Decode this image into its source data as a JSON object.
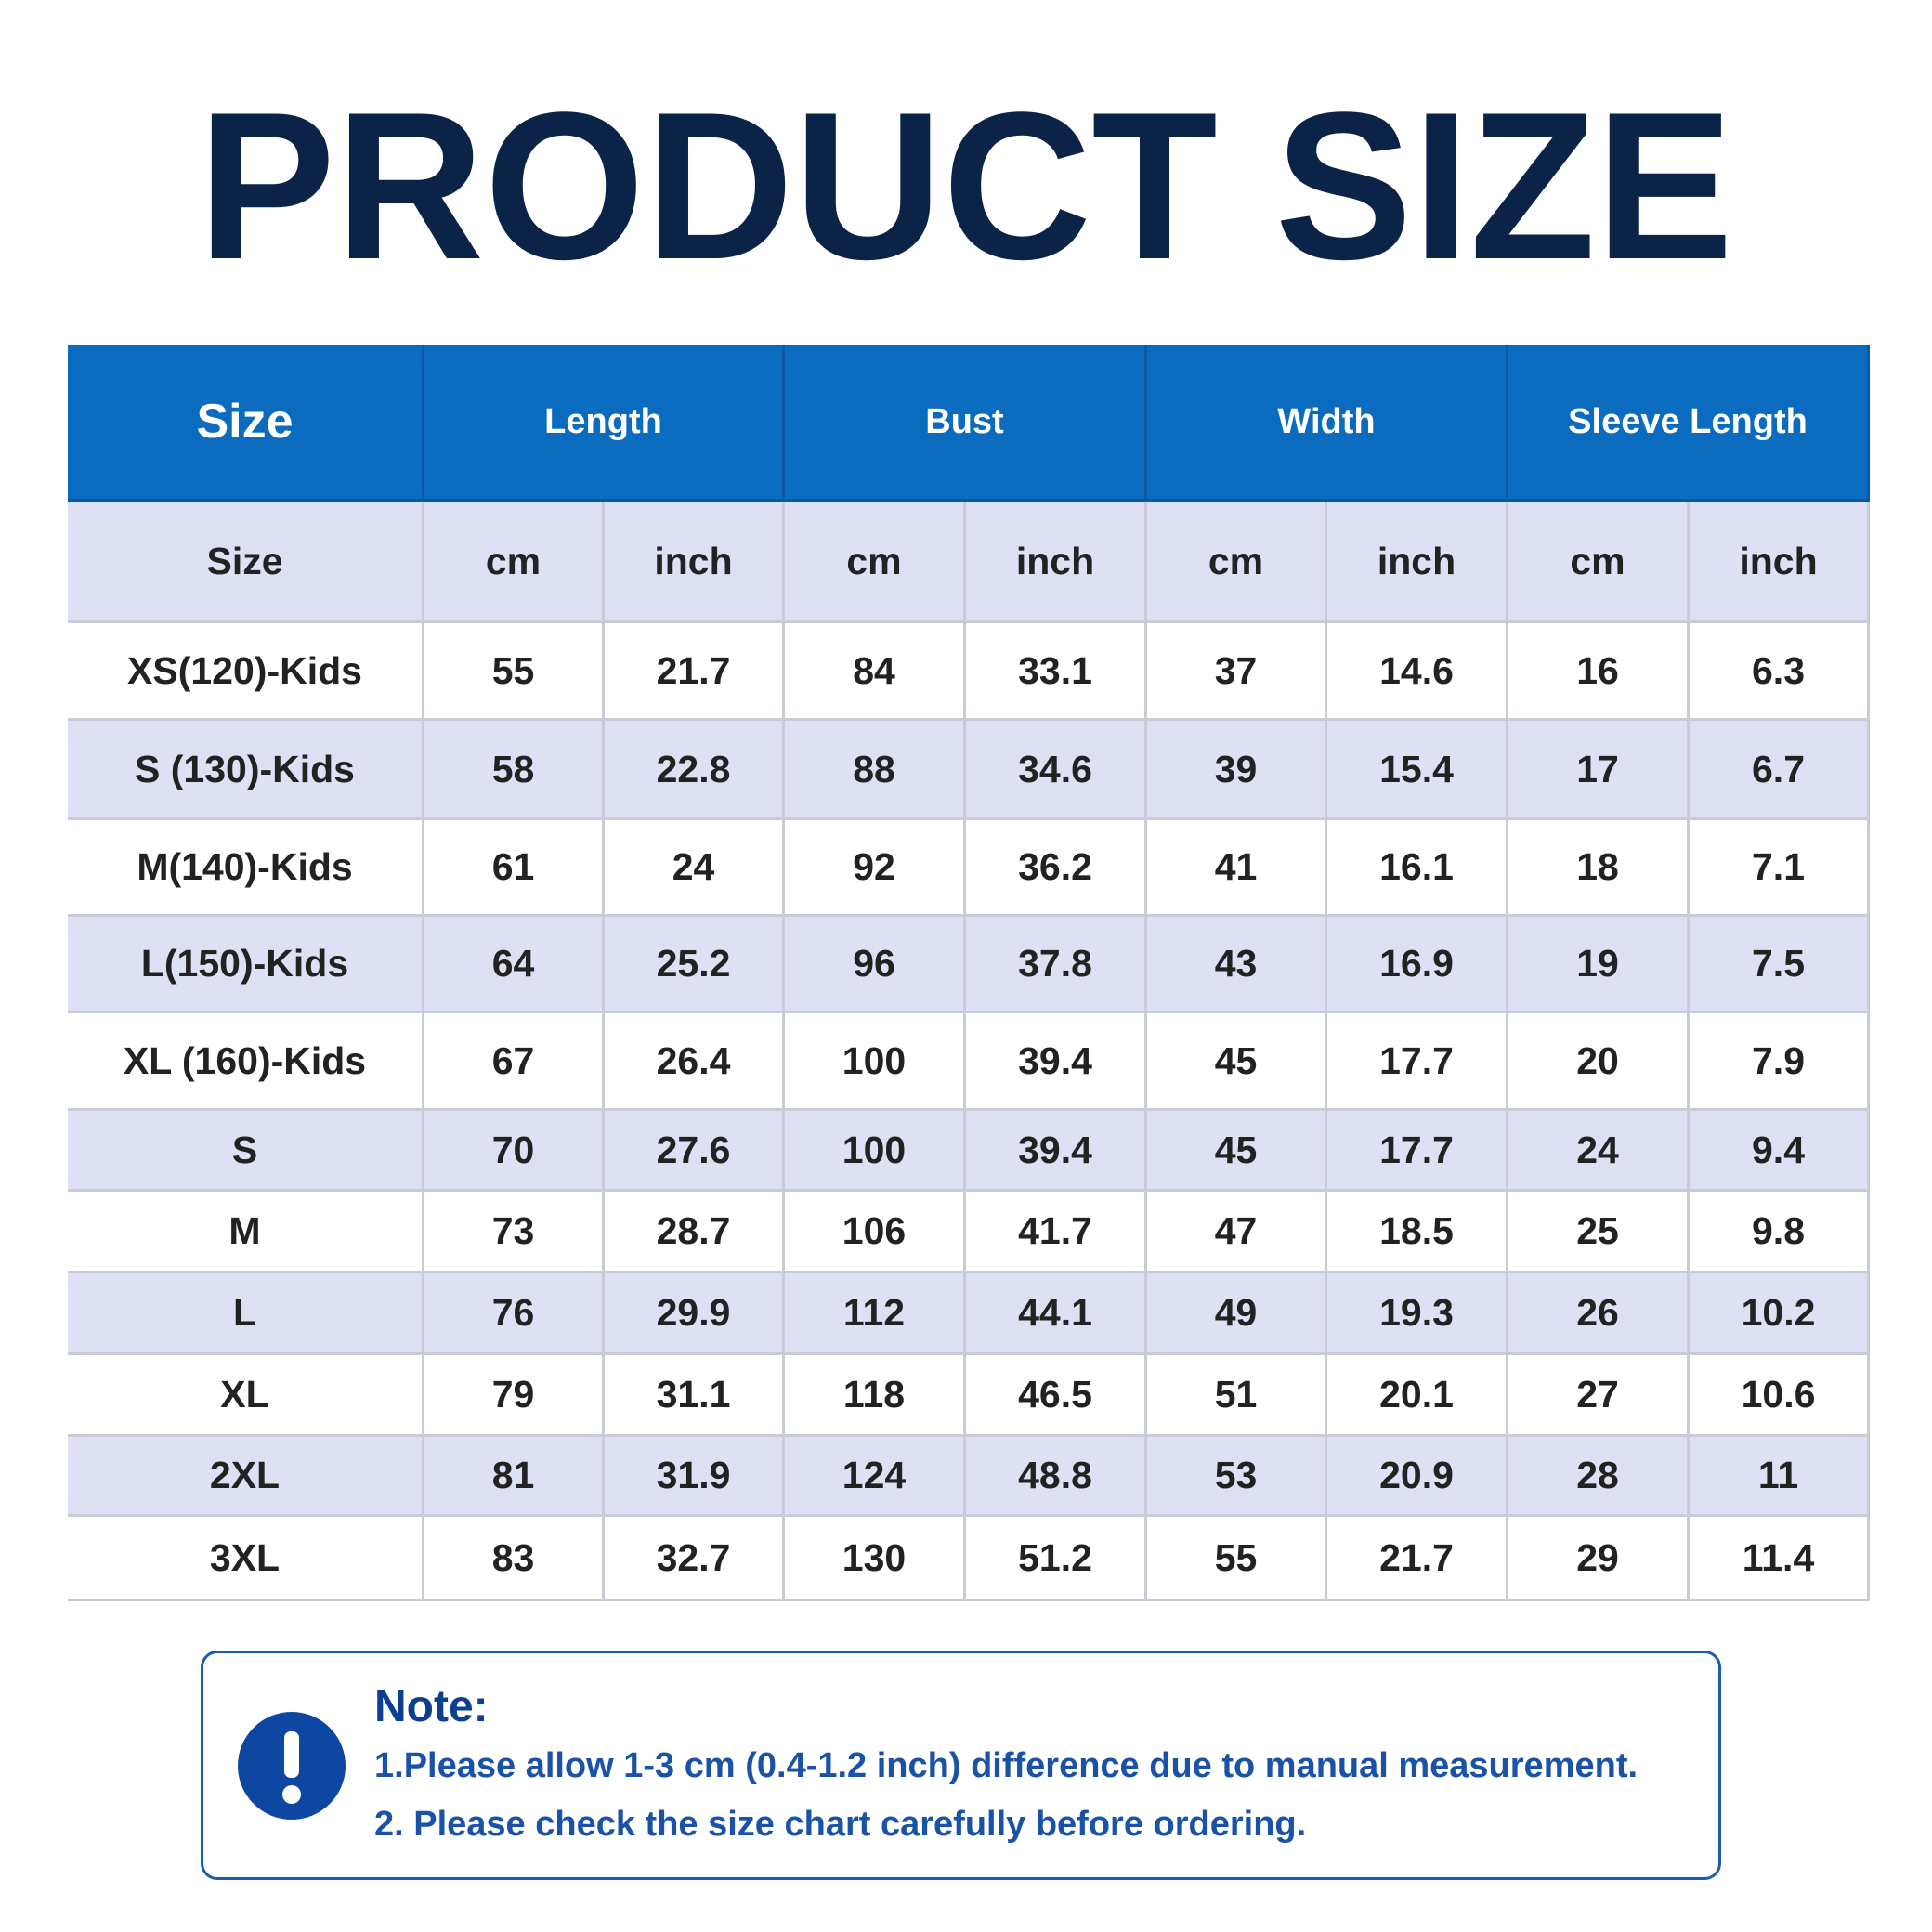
{
  "header": {
    "title": "PRODUCT SIZE"
  },
  "table": {
    "group_headers": [
      "Size",
      "Length",
      "Bust",
      "Width",
      "Sleeve Length"
    ],
    "sub_headers": [
      "Size",
      "cm",
      "inch",
      "cm",
      "inch",
      "cm",
      "inch",
      "cm",
      "inch"
    ],
    "rows": [
      [
        "XS(120)-Kids",
        "55",
        "21.7",
        "84",
        "33.1",
        "37",
        "14.6",
        "16",
        "6.3"
      ],
      [
        "S (130)-Kids",
        "58",
        "22.8",
        "88",
        "34.6",
        "39",
        "15.4",
        "17",
        "6.7"
      ],
      [
        "M(140)-Kids",
        "61",
        "24",
        "92",
        "36.2",
        "41",
        "16.1",
        "18",
        "7.1"
      ],
      [
        "L(150)-Kids",
        "64",
        "25.2",
        "96",
        "37.8",
        "43",
        "16.9",
        "19",
        "7.5"
      ],
      [
        "XL (160)-Kids",
        "67",
        "26.4",
        "100",
        "39.4",
        "45",
        "17.7",
        "20",
        "7.9"
      ],
      [
        "S",
        "70",
        "27.6",
        "100",
        "39.4",
        "45",
        "17.7",
        "24",
        "9.4"
      ],
      [
        "M",
        "73",
        "28.7",
        "106",
        "41.7",
        "47",
        "18.5",
        "25",
        "9.8"
      ],
      [
        "L",
        "76",
        "29.9",
        "112",
        "44.1",
        "49",
        "19.3",
        "26",
        "10.2"
      ],
      [
        "XL",
        "79",
        "31.1",
        "118",
        "46.5",
        "51",
        "20.1",
        "27",
        "10.6"
      ],
      [
        "2XL",
        "81",
        "31.9",
        "124",
        "48.8",
        "53",
        "20.9",
        "28",
        "11"
      ],
      [
        "3XL",
        "83",
        "32.7",
        "130",
        "51.2",
        "55",
        "21.7",
        "29",
        "11.4"
      ]
    ]
  },
  "note": {
    "title": "Note:",
    "lines": [
      "1.Please allow 1-3 cm (0.4-1.2 inch) difference due to manual measurement.",
      "2. Please check the size chart carefully before ordering."
    ]
  }
}
